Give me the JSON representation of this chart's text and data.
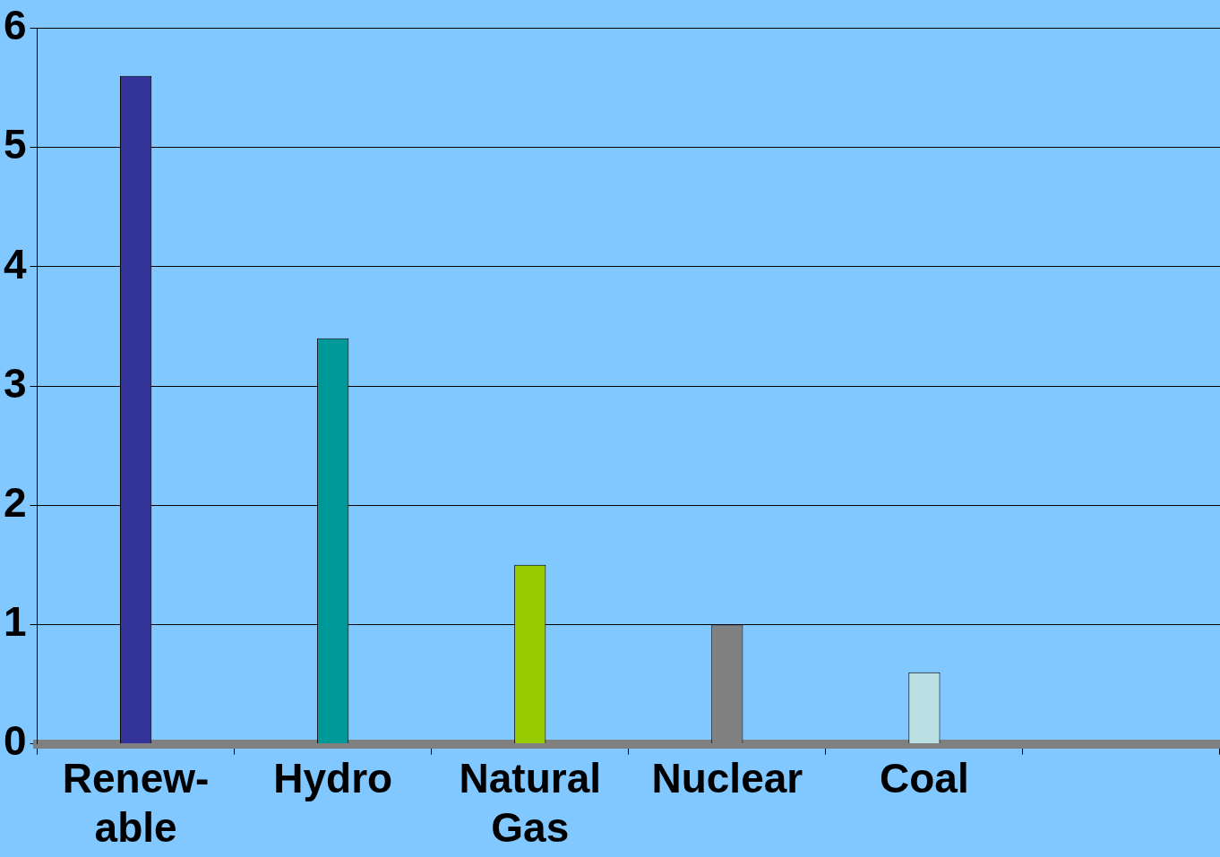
{
  "chart_data": {
    "type": "bar",
    "categories": [
      "Renew-able",
      "Hydro",
      "Natural Gas",
      "Nuclear",
      "Coal",
      null
    ],
    "values": [
      5.6,
      3.4,
      1.5,
      1.0,
      0.6,
      null
    ],
    "colors": [
      "#333399",
      "#009999",
      "#99cc00",
      "#808080",
      "#bbe0e3",
      "#808080"
    ],
    "ylim": [
      0,
      6
    ],
    "yticks": [
      0,
      1,
      2,
      3,
      4,
      5,
      6
    ],
    "grid": "y"
  }
}
